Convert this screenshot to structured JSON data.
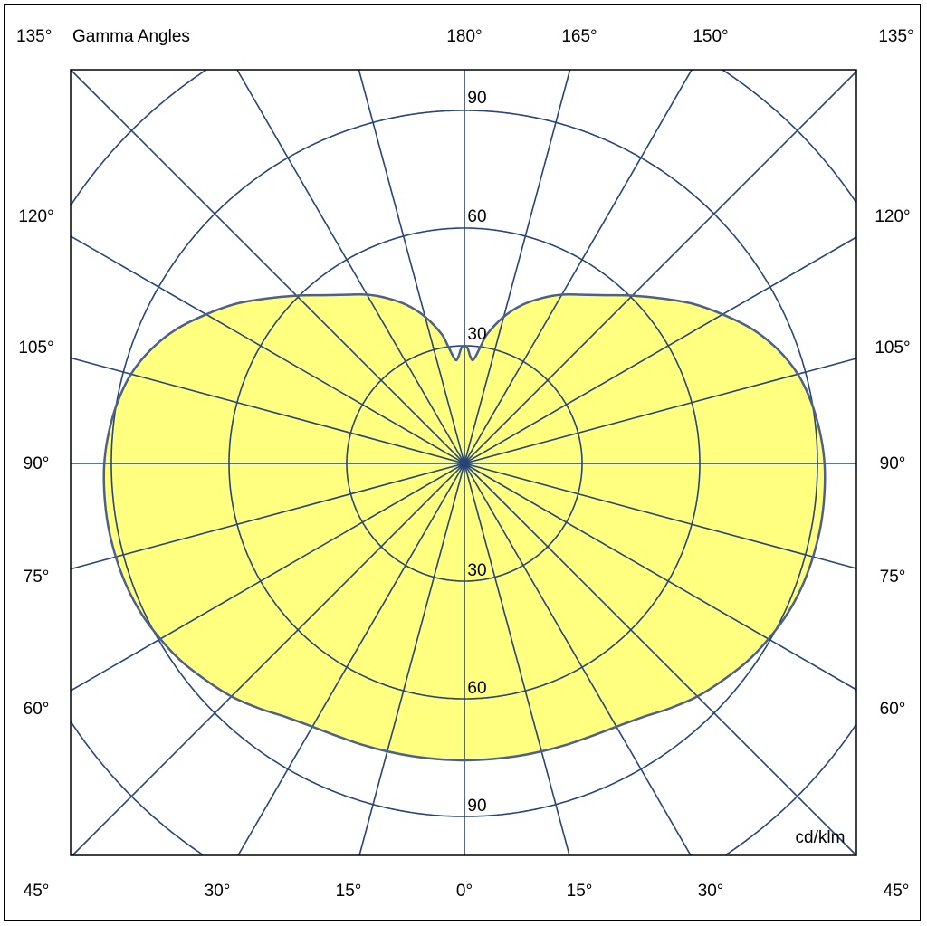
{
  "chart_data": {
    "type": "polar-line",
    "title": "Gamma Angles",
    "unit_label": "cd/klm",
    "radial_ticks": [
      30,
      60,
      90,
      120
    ],
    "radial_tick_labels_shown": [
      "90",
      "60",
      "30",
      "30",
      "60",
      "90"
    ],
    "rmax": 120,
    "angle_step_deg": 15,
    "top_labels": [
      "135°",
      "180°",
      "165°",
      "150°",
      "135°"
    ],
    "left_labels": [
      "120°",
      "105°",
      "90°",
      "75°",
      "60°"
    ],
    "right_labels": [
      "120°",
      "105°",
      "90°",
      "75°",
      "60°"
    ],
    "bottom_labels": [
      "45°",
      "30°",
      "15°",
      "0°",
      "15°",
      "30°",
      "45°"
    ],
    "series": [
      {
        "name": "intensity",
        "symmetric": true,
        "gamma": [
          0,
          5,
          10,
          15,
          20,
          25,
          30,
          35,
          40,
          45,
          50,
          55,
          60,
          65,
          70,
          75,
          80,
          85,
          90,
          95,
          100,
          105,
          110,
          115,
          120,
          125,
          130,
          135,
          140,
          145,
          150,
          155,
          160,
          165,
          170,
          172,
          174,
          175.5,
          177,
          178.5,
          180
        ],
        "values": [
          75.7,
          75.7,
          75.8,
          76,
          76.3,
          76.7,
          77.5,
          79,
          81.5,
          84,
          86,
          88,
          89.5,
          90.8,
          91.6,
          92,
          92.2,
          92.1,
          91.8,
          91,
          89.8,
          88,
          85,
          81,
          76,
          71,
          65.5,
          60.5,
          56,
          52.5,
          49.7,
          46.5,
          43,
          38.7,
          33.5,
          30.3,
          27.5,
          26.4,
          27.5,
          29.5,
          30
        ]
      }
    ],
    "colors": {
      "grid": "#27457a",
      "fill": "#ffff80",
      "curve": "#4d5f8c"
    }
  }
}
